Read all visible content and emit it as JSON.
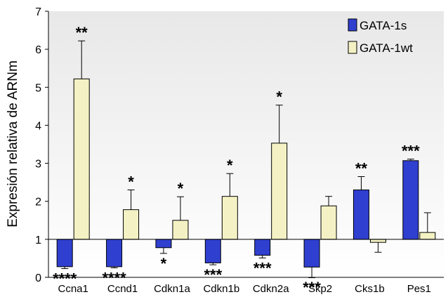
{
  "chart_data": {
    "type": "bar",
    "ylabel": "Expresión relativa de ARNm",
    "xlabel": "",
    "ylim": [
      0,
      7
    ],
    "yticks": [
      0,
      1,
      2,
      3,
      4,
      5,
      6,
      7
    ],
    "baseline": 1,
    "grid": false,
    "legend_position": "top-right",
    "categories": [
      "Ccna1",
      "Ccnd1",
      "Cdkn1a",
      "Cdkn1b",
      "Cdkn2a",
      "Skp2",
      "Cks1b",
      "Pes1"
    ],
    "series": [
      {
        "name": "GATA-1s",
        "color": "#2f3fcf",
        "values": [
          0.28,
          0.28,
          0.78,
          0.38,
          0.58,
          0.27,
          2.3,
          3.07
        ],
        "error": [
          0.05,
          0.03,
          0.15,
          0.05,
          0.07,
          0.28,
          0.35,
          0.04
        ],
        "significance": [
          "****",
          "****",
          "*",
          "***",
          "***",
          "***",
          "**",
          "***"
        ]
      },
      {
        "name": "GATA-1wt",
        "color": "#f4f2c4",
        "values": [
          5.22,
          1.78,
          1.5,
          2.13,
          3.53,
          1.88,
          0.92,
          1.18
        ],
        "error": [
          1.0,
          0.52,
          0.62,
          0.6,
          1.0,
          0.25,
          0.26,
          0.52
        ],
        "significance": [
          "**",
          "*",
          "*",
          "*",
          "*",
          "",
          "",
          ""
        ]
      }
    ]
  }
}
